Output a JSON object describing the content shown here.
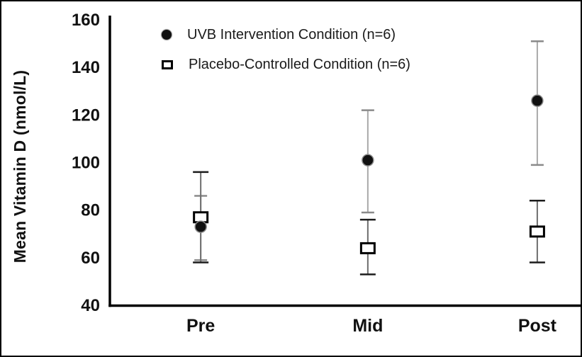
{
  "figure": {
    "kind": "scatter plot with error bars"
  },
  "chart_data": {
    "type": "scatter",
    "title": "",
    "xlabel": "",
    "ylabel": "Mean Vitamin D (nmol/L)",
    "categories": [
      "Pre",
      "Mid",
      "Post"
    ],
    "ylim": [
      40,
      160
    ],
    "yticks": [
      160,
      140,
      120,
      100,
      80,
      60,
      40
    ],
    "grid": false,
    "legend_position": "top-left-inside",
    "series": [
      {
        "name": "UVB Intervention Condition (n=6)",
        "marker": "filled-circle",
        "values": [
          73,
          101,
          126
        ],
        "error_low": [
          59,
          79,
          99
        ],
        "error_high": [
          86,
          122,
          151
        ],
        "marker_color": "#111111",
        "marker_edge_color": "#8a8a8a",
        "errorbar_color": "#a9a9a9",
        "cap_color": "#8a8a8a",
        "cap_half_width": 9
      },
      {
        "name": "Placebo-Controlled Condition (n=6)",
        "marker": "open-square",
        "values": [
          77,
          64,
          71
        ],
        "error_low": [
          58,
          53,
          58
        ],
        "error_high": [
          96,
          76,
          84
        ],
        "marker_color": "#ffffff",
        "marker_edge_color": "#000000",
        "errorbar_color": "#6e6e6e",
        "cap_color": "#1c1c1c",
        "cap_half_width": 11
      }
    ],
    "axis_color": "#000000",
    "text_color": "#111111"
  }
}
